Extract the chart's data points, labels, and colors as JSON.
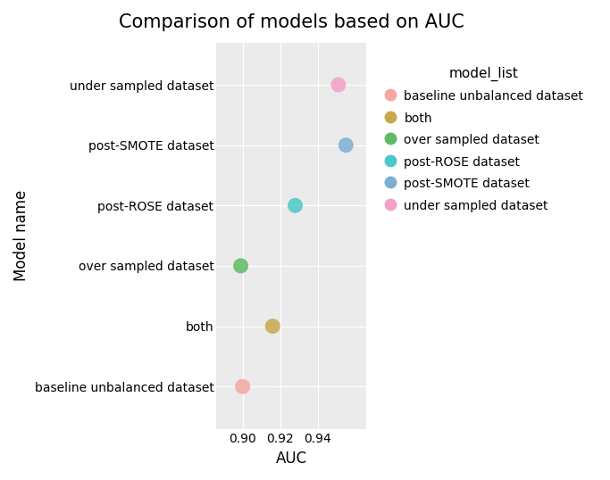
{
  "title": "Comparison of models based on AUC",
  "xlabel": "AUC",
  "ylabel": "Model name",
  "legend_title": "model_list",
  "categories": [
    "baseline unbalanced dataset",
    "both",
    "over sampled dataset",
    "post-ROSE dataset",
    "post-SMOTE dataset",
    "under sampled dataset"
  ],
  "auc_values": [
    0.9,
    0.916,
    0.899,
    0.928,
    0.955,
    0.951
  ],
  "colors": [
    "#F4A7A0",
    "#C8A84B",
    "#5DBB63",
    "#4BC8C8",
    "#7BAFD4",
    "#F4A0C8"
  ],
  "legend_labels": [
    "baseline unbalanced dataset",
    "both",
    "over sampled dataset",
    "post-ROSE dataset",
    "post-SMOTE dataset",
    "under sampled dataset"
  ],
  "legend_colors": [
    "#F4A7A0",
    "#C8A84B",
    "#5DBB63",
    "#4BC8C8",
    "#7BAFD4",
    "#F4A0C8"
  ],
  "xlim": [
    0.886,
    0.966
  ],
  "xticks": [
    0.9,
    0.92,
    0.94
  ],
  "background_color": "#EBEBEB",
  "fig_background": "#FFFFFF",
  "marker_size": 150,
  "title_fontsize": 15,
  "axis_label_fontsize": 12,
  "tick_fontsize": 10,
  "legend_fontsize": 10,
  "legend_title_fontsize": 11
}
